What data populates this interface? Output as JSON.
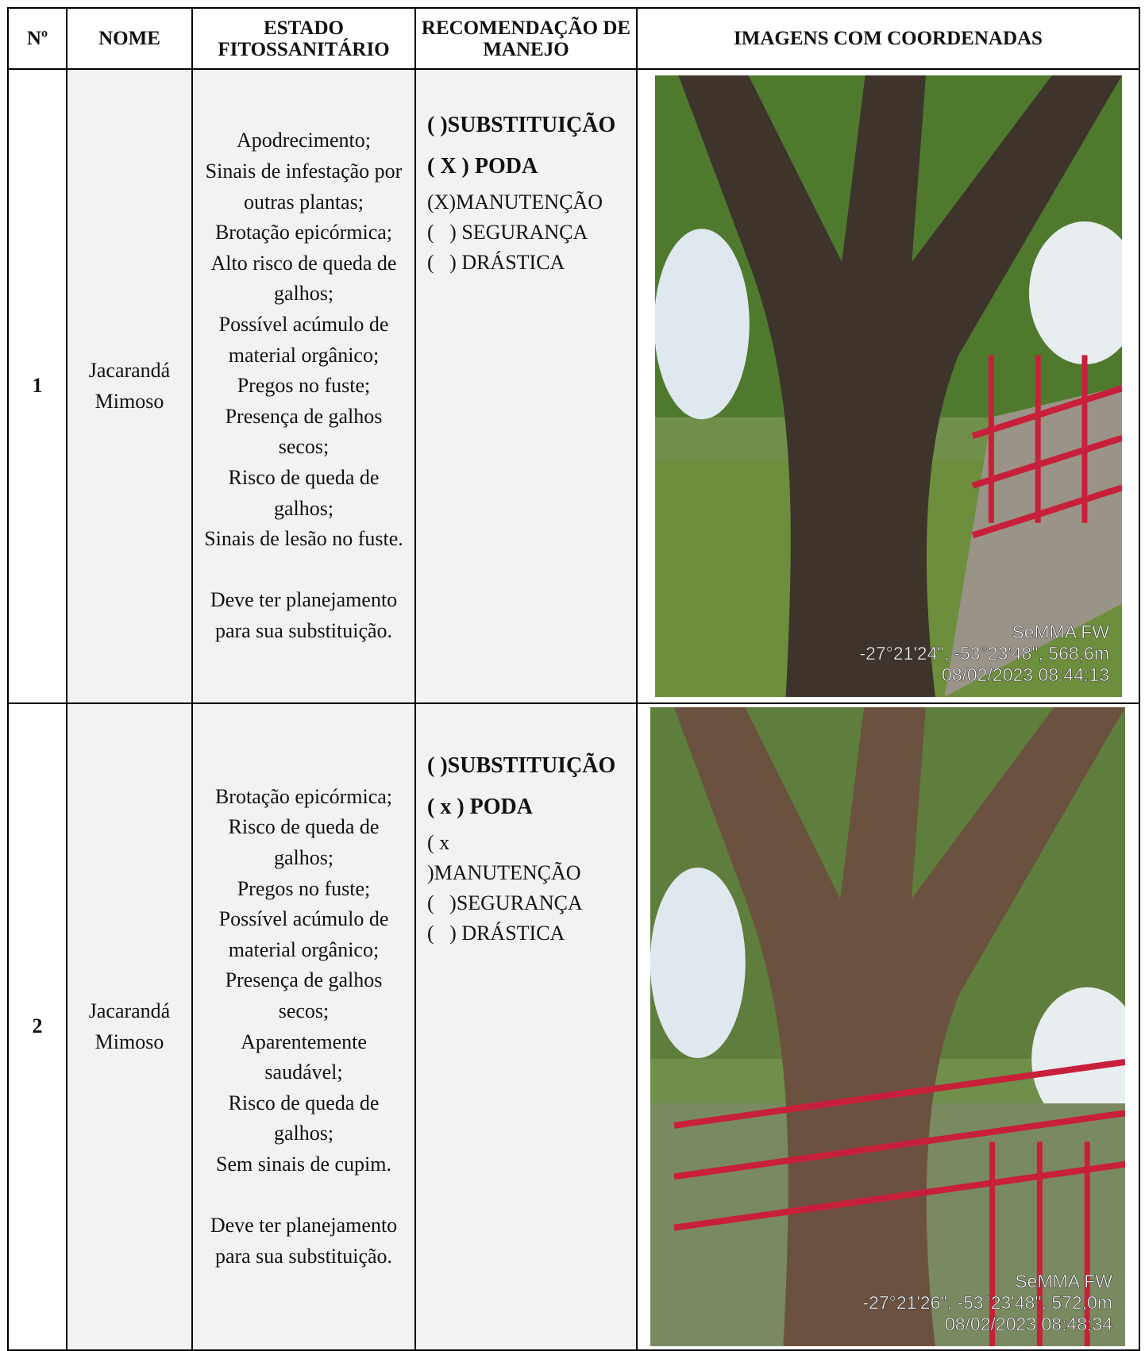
{
  "header": [
    "Nº",
    "NOME",
    "ESTADO FITOSSANITÁRIO",
    "RECOMENDAÇÃO DE MANEJO",
    "IMAGENS COM COORDENADAS"
  ],
  "rows": [
    {
      "number": "1",
      "name": "Jacarandá Mimoso",
      "estado": [
        "Apodrecimento;",
        "Sinais de infestação por outras plantas;",
        "Brotação epicórmica;",
        "Alto risco de queda de galhos;",
        "Possível acúmulo de material orgânico;",
        "Pregos no fuste;",
        "Presença de galhos secos;",
        "Risco de queda de galhos;",
        "Sinais de lesão no fuste."
      ],
      "nota": "Deve ter planejamento para sua substituição.",
      "recomendacao": [
        {
          "text": "( )SUBSTITUIÇÃO",
          "bold": true
        },
        {
          "text": "( X ) PODA",
          "bold": true
        },
        {
          "text": "(X)MANUTENÇÃO",
          "bold": false
        },
        {
          "text": "(   ) SEGURANÇA",
          "bold": false
        },
        {
          "text": "(   ) DRÁSTICA",
          "bold": false
        }
      ],
      "photo": {
        "label": "SeMMA FW",
        "coords": "-27°21'24\", -53°23'48\", 568,6m",
        "datetime": "08/02/2023 08:44:13"
      }
    },
    {
      "number": "2",
      "name": "Jacarandá Mimoso",
      "estado": [
        "Brotação epicórmica;",
        "Risco de queda de galhos;",
        "Pregos no fuste;",
        "Possível acúmulo de material orgânico;",
        "Presença de galhos secos;",
        "Aparentemente saudável;",
        "Risco de queda de galhos;",
        "Sem sinais de cupim."
      ],
      "nota": "Deve ter planejamento para sua substituição.",
      "recomendacao": [
        {
          "text": "( )SUBSTITUIÇÃO",
          "bold": true
        },
        {
          "text": "( x ) PODA",
          "bold": true
        },
        {
          "text": "( x )MANUTENÇÃO",
          "bold": false
        },
        {
          "text": "(   )SEGURANÇA",
          "bold": false
        },
        {
          "text": "(   ) DRÁSTICA",
          "bold": false
        }
      ],
      "photo": {
        "label": "SeMMA FW",
        "coords": "-27°21'26\", -53°23'48\", 572,0m",
        "datetime": "08/02/2023 08:48:34"
      }
    }
  ]
}
